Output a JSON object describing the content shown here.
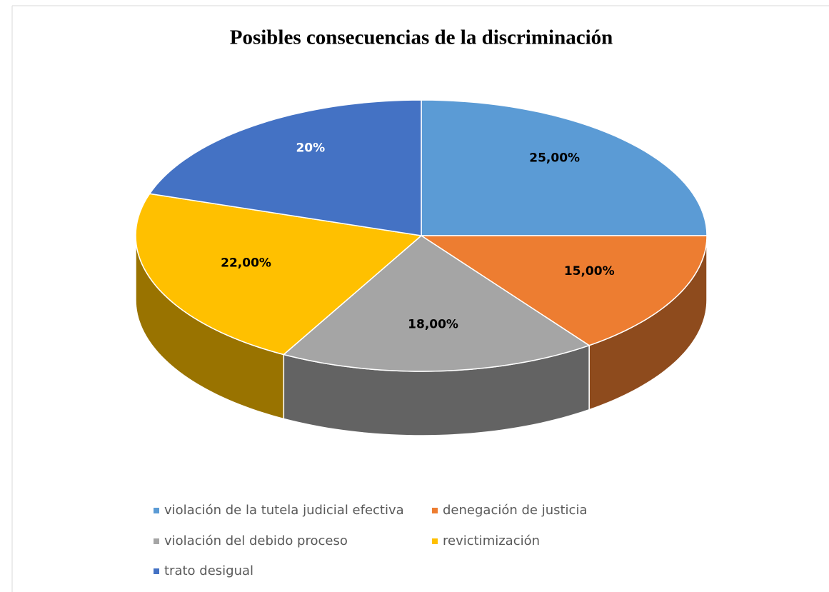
{
  "chart_data": {
    "type": "pie3d",
    "title": "Posibles consecuencias de la discriminación",
    "categories": [
      "violación de la tutela judicial efectiva",
      "denegación de justicia",
      "violación del debido proceso",
      "revictimización",
      "trato desigual"
    ],
    "values": [
      25,
      15,
      18,
      22,
      20
    ],
    "value_labels": [
      "25,00%",
      "15,00%",
      "18,00%",
      "22,00%",
      "20%"
    ],
    "colors": [
      "#5b9bd5",
      "#ed7d31",
      "#a5a5a5",
      "#ffc000",
      "#4472c4"
    ],
    "value_label_colors": [
      "#000000",
      "#000000",
      "#000000",
      "#000000",
      "#ffffff"
    ],
    "legend": "bottom"
  }
}
